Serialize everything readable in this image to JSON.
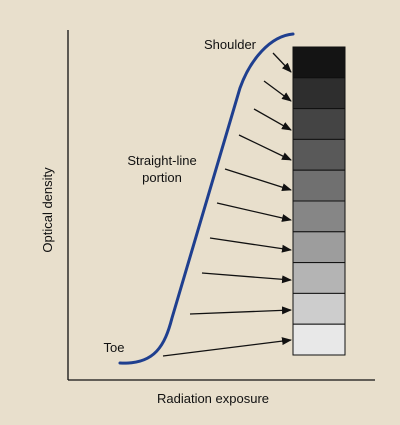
{
  "labels": {
    "y_axis": "Optical density",
    "x_axis": "Radiation exposure",
    "toe": "Toe",
    "straight_line": [
      "Straight-line",
      "portion"
    ],
    "shoulder": "Shoulder"
  },
  "step_wedge": {
    "step_count": 10,
    "colors_top_to_bottom": [
      "#141414",
      "#2e2e2e",
      "#444444",
      "#595959",
      "#707070",
      "#868686",
      "#9d9d9d",
      "#b4b4b4",
      "#cdcdcd",
      "#e8e8e8"
    ]
  },
  "colors": {
    "background": "#e8dfcc",
    "curve": "#1f3f8f",
    "axis": "#111111",
    "arrow": "#111111"
  }
}
